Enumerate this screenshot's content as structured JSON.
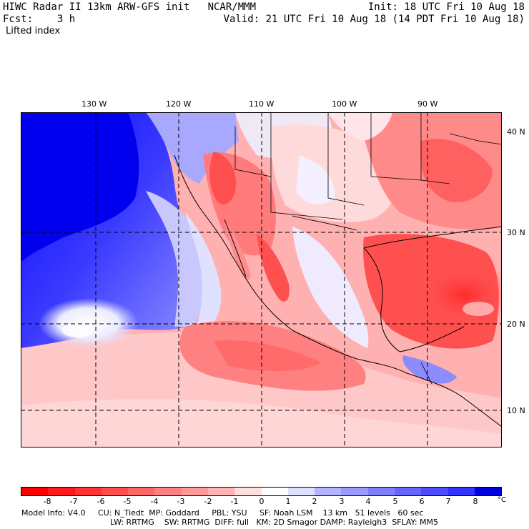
{
  "header": {
    "title": "HIWC Radar II 13km ARW-GFS init   NCAR/MMM",
    "forecast": "Fcst:    3 h",
    "init": "Init: 18 UTC Fri 10 Aug 18",
    "valid": "Valid: 21 UTC Fri 10 Aug 18 (14 PDT Fri 10 Aug 18)",
    "field": "Lifted index"
  },
  "map": {
    "longitude_labels": [
      "130 W",
      "120 W",
      "110 W",
      "100 W",
      "90 W"
    ],
    "latitude_labels": [
      "40 N",
      "30 N",
      "20 N",
      "10 N"
    ]
  },
  "colorbar": {
    "tick_labels": [
      "-8",
      "-7",
      "-6",
      "-5",
      "-4",
      "-3",
      "-2",
      "-1",
      "0",
      "1",
      "2",
      "3",
      "4",
      "5",
      "6",
      "7",
      "8"
    ],
    "unit": "°C",
    "colors": [
      "#ff0000",
      "#ff1a1a",
      "#ff3333",
      "#ff4d4d",
      "#ff6666",
      "#ff8080",
      "#ff9999",
      "#ffb3b3",
      "#ffdede",
      "#ffffff",
      "#dedeff",
      "#b3b3ff",
      "#9999ff",
      "#8080ff",
      "#6666ff",
      "#4d4dff",
      "#3333ff",
      "#0000e0"
    ]
  },
  "footer": {
    "line1": "Model Info: V4.0     CU: N_Tiedt  MP: Goddard     PBL: YSU     SF: Noah LSM    13 km   51 levels   60 sec",
    "line2": "LW: RRTMG    SW: RRTMG  DIFF: full   KM: 2D Smagor DAMP: Rayleigh3  SFLAY: MM5"
  }
}
